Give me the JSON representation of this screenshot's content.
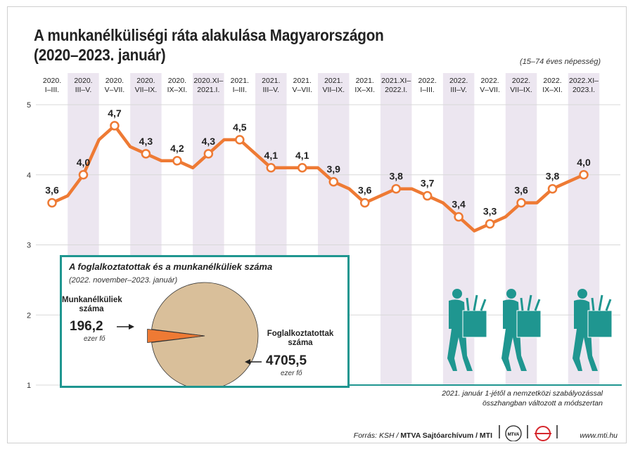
{
  "title_line1": "A munkanélküliségi ráta alakulása Magyarországon",
  "title_line2": "(2020–2023. január)",
  "population_note": "(15–74 éves népesség)",
  "colors": {
    "line": "#ee7a34",
    "accent": "#1f9690",
    "column_shade": "#ece6f0",
    "pie_main": "#d9bf9a",
    "pie_slice": "#ee7a34"
  },
  "icons": [
    "worker-carrying-box-icon",
    "mtva-logo-icon",
    "mti-logo-icon"
  ],
  "chart_data": {
    "type": "line",
    "ylim": [
      1,
      5
    ],
    "yticks": [
      "1",
      "2",
      "3",
      "4",
      "5"
    ],
    "grid": true,
    "periods": [
      "2020. I–III.",
      "2020. III–V.",
      "2020. V–VII.",
      "2020. VII–IX.",
      "2020. IX–XI.",
      "2020.XI–2021.I.",
      "2021. I–III.",
      "2021. III–V.",
      "2021. V–VII.",
      "2021. VII–IX.",
      "2021. IX–XI.",
      "2021.XI–2022.I.",
      "2022. I–III.",
      "2022. III–V.",
      "2022. V–VII.",
      "2022. VII–IX.",
      "2022. IX–XI.",
      "2022.XI–2023.I."
    ],
    "period_headers": [
      {
        "l1": "2020.",
        "l2": "I–III."
      },
      {
        "l1": "2020.",
        "l2": "III–V."
      },
      {
        "l1": "2020.",
        "l2": "V–VII."
      },
      {
        "l1": "2020.",
        "l2": "VII–IX."
      },
      {
        "l1": "2020.",
        "l2": "IX–XI."
      },
      {
        "l1": "2020.XI–",
        "l2": "2021.I."
      },
      {
        "l1": "2021.",
        "l2": "I–III."
      },
      {
        "l1": "2021.",
        "l2": "III–V."
      },
      {
        "l1": "2021.",
        "l2": "V–VII."
      },
      {
        "l1": "2021.",
        "l2": "VII–IX."
      },
      {
        "l1": "2021.",
        "l2": "IX–XI."
      },
      {
        "l1": "2021.XI–",
        "l2": "2022.I."
      },
      {
        "l1": "2022.",
        "l2": "I–III."
      },
      {
        "l1": "2022.",
        "l2": "III–V."
      },
      {
        "l1": "2022.",
        "l2": "V–VII."
      },
      {
        "l1": "2022.",
        "l2": "VII–IX."
      },
      {
        "l1": "2022.",
        "l2": "IX–XI."
      },
      {
        "l1": "2022.XI–",
        "l2": "2023.I."
      }
    ],
    "labeled_values": [
      3.6,
      4.0,
      4.7,
      4.3,
      4.2,
      4.3,
      4.5,
      4.1,
      4.1,
      3.9,
      3.6,
      3.8,
      3.7,
      3.4,
      3.3,
      3.6,
      3.8,
      4.0
    ],
    "value_labels": [
      "3,6",
      "4,0",
      "4,7",
      "4,3",
      "4,2",
      "4,3",
      "4,5",
      "4,1",
      "4,1",
      "3,9",
      "3,6",
      "3,8",
      "3,7",
      "3,4",
      "3,3",
      "3,6",
      "3,8",
      "4,0"
    ],
    "monthly_values": [
      3.6,
      3.7,
      4.0,
      4.5,
      4.7,
      4.4,
      4.3,
      4.2,
      4.2,
      4.1,
      4.3,
      4.5,
      4.5,
      4.3,
      4.1,
      4.1,
      4.1,
      4.1,
      3.9,
      3.8,
      3.6,
      3.7,
      3.8,
      3.8,
      3.7,
      3.6,
      3.4,
      3.2,
      3.3,
      3.4,
      3.6,
      3.6,
      3.8,
      3.9,
      4.0
    ]
  },
  "inset": {
    "title": "A foglalkoztatottak és a munkanélküliek száma",
    "subtitle": "(2022. november–2023. január)",
    "unemployed_label_l1": "Munkanélküliek",
    "unemployed_label_l2": "száma",
    "unemployed_value": "196,2",
    "unemployed_unit": "ezer fő",
    "employed_label_l1": "Foglalkoztatottak",
    "employed_label_l2": "száma",
    "employed_value": "4705,5",
    "employed_unit": "ezer fő",
    "pie_data": {
      "type": "pie",
      "values": [
        4705.5,
        196.2
      ]
    }
  },
  "methodology_l1": "2021. január 1-jétől a nemzetközi szabályozással",
  "methodology_l2": "összhangban változott a módszertan",
  "footer": {
    "source_prefix": "Forrás: KSH / ",
    "source_bold": "MTVA Sajtóarchívum / MTI",
    "logo1_text": "MTVA",
    "url": "www.mti.hu"
  }
}
